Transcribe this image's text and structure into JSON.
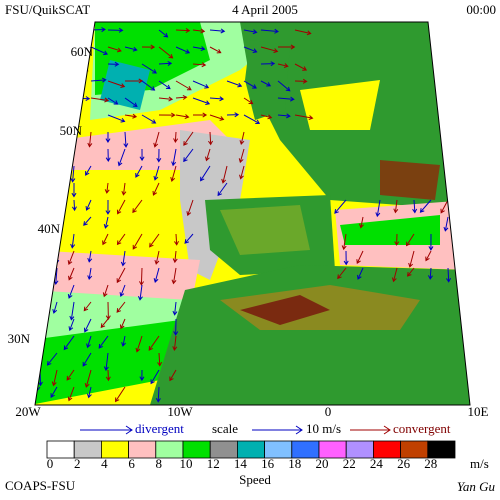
{
  "header": {
    "title": "FSU/QuikSCAT",
    "date": "4 April 2005",
    "time": "00:00"
  },
  "map": {
    "lat_labels": [
      "60N",
      "50N",
      "40N",
      "30N"
    ],
    "lon_labels": [
      "20W",
      "10W",
      "0",
      "10E"
    ]
  },
  "legend": {
    "divergent": "divergent",
    "scale": "scale",
    "scale_value": "10 m/s",
    "convergent": "convergent"
  },
  "colorbar": {
    "labels": [
      0,
      2,
      4,
      6,
      8,
      10,
      12,
      14,
      16,
      18,
      20,
      22,
      24,
      26,
      28
    ],
    "colors": [
      "#ffffff",
      "#c8c8c8",
      "#ffff00",
      "#ffc0c0",
      "#a0ffa0",
      "#00e000",
      "#909090",
      "#00b0b0",
      "#80c0ff",
      "#3070ff",
      "#ff60ff",
      "#b090ff",
      "#ff0000",
      "#c04000",
      "#000000"
    ],
    "unit": "m/s",
    "title": "Speed"
  },
  "footer": {
    "credit": "COAPS-FSU",
    "author": "Yan Gu"
  }
}
